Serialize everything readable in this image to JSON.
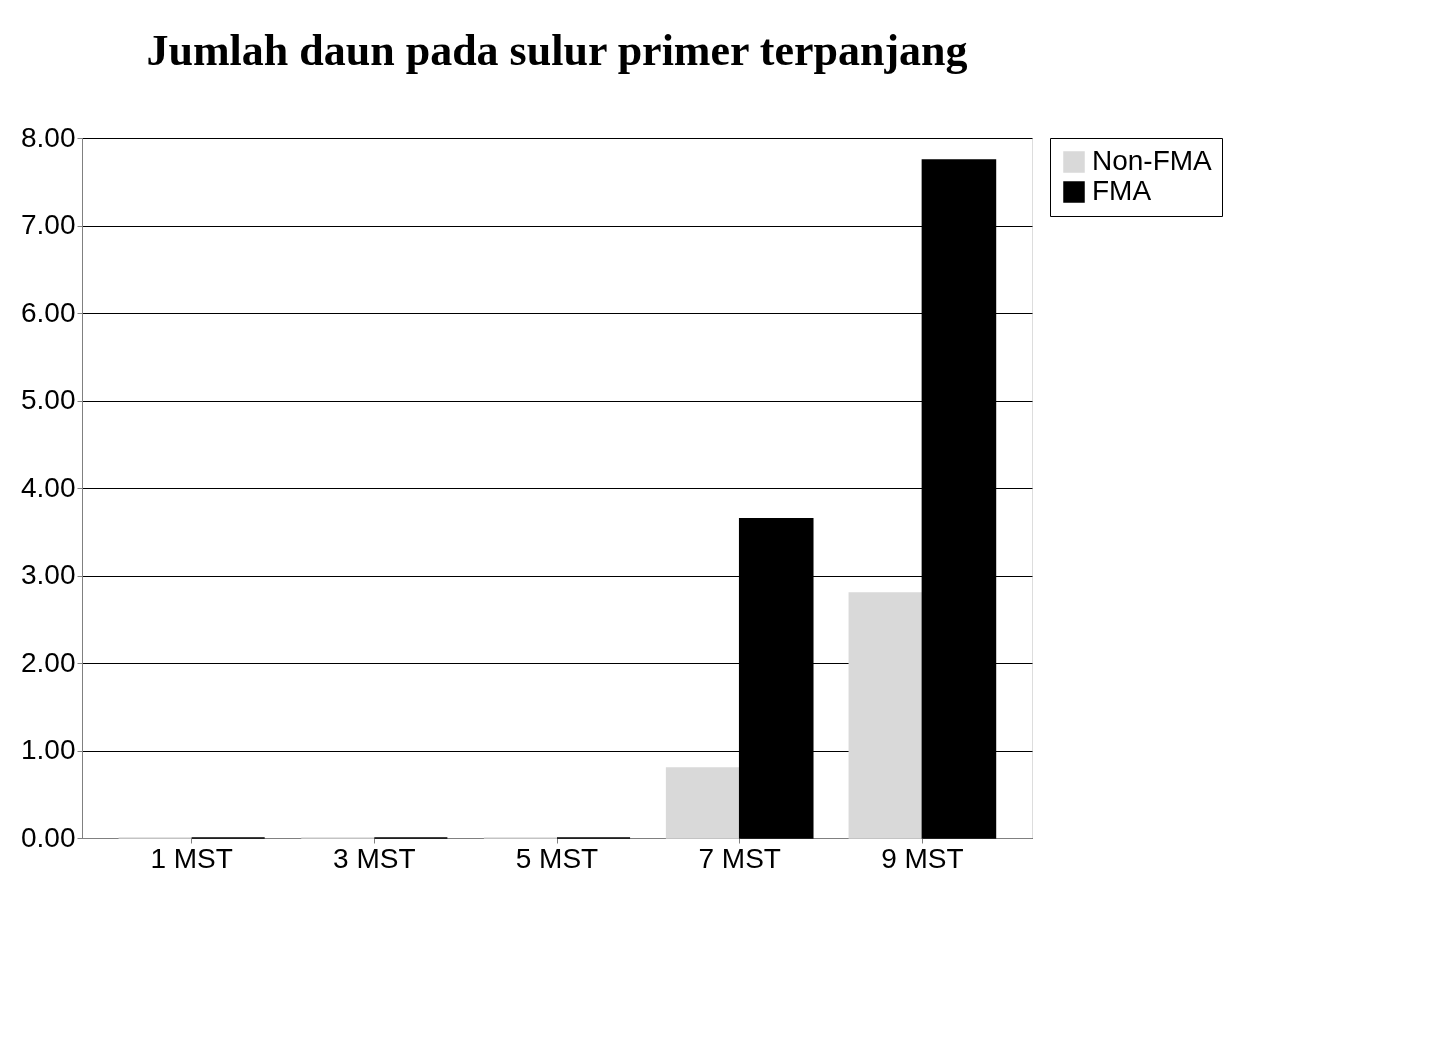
{
  "chart_data": {
    "type": "bar",
    "title": "Jumlah daun pada sulur primer terpanjang",
    "categories": [
      "1 MST",
      "3 MST",
      "5 MST",
      "7 MST",
      "9 MST"
    ],
    "series": [
      {
        "name": "Non-FMA",
        "color": "#d9d9d9",
        "values": [
          0,
          0,
          0,
          0.8,
          2.8
        ]
      },
      {
        "name": "FMA",
        "color": "#000000",
        "values": [
          0,
          0,
          0,
          3.65,
          7.75
        ]
      }
    ],
    "ylim": [
      0,
      8
    ],
    "yticks": [
      {
        "value": 0,
        "label": "0.00"
      },
      {
        "value": 1,
        "label": "1.00"
      },
      {
        "value": 2,
        "label": "2.00"
      },
      {
        "value": 3,
        "label": "3.00"
      },
      {
        "value": 4,
        "label": "4.00"
      },
      {
        "value": 5,
        "label": "5.00"
      },
      {
        "value": 6,
        "label": "6.00"
      },
      {
        "value": 7,
        "label": "7.00"
      },
      {
        "value": 8,
        "label": "8.00"
      }
    ],
    "grid": "y",
    "legend": "right"
  }
}
